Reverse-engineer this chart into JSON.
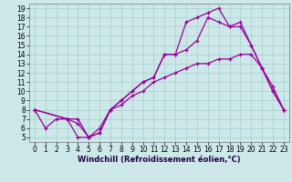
{
  "bg_color": "#cce8e8",
  "line_color": "#990099",
  "grid_color": "#aacccc",
  "xlim": [
    -0.5,
    23.5
  ],
  "ylim": [
    4.5,
    19.5
  ],
  "xticks": [
    0,
    1,
    2,
    3,
    4,
    5,
    6,
    7,
    8,
    9,
    10,
    11,
    12,
    13,
    14,
    15,
    16,
    17,
    18,
    19,
    20,
    21,
    22,
    23
  ],
  "yticks": [
    5,
    6,
    7,
    8,
    9,
    10,
    11,
    12,
    13,
    14,
    15,
    16,
    17,
    18,
    19
  ],
  "xlabel": "Windchill (Refroidissement éolien,°C)",
  "line1_x": [
    0,
    1,
    2,
    3,
    4,
    5,
    6,
    7,
    8,
    9,
    10,
    11,
    12,
    13,
    14,
    15,
    16,
    17,
    18,
    19,
    20,
    21,
    22,
    23
  ],
  "line1_y": [
    8,
    6,
    7,
    7,
    5,
    5,
    6,
    8,
    8.5,
    9.5,
    10,
    11,
    11.5,
    12,
    12.5,
    13,
    13,
    13.5,
    13.5,
    14,
    14,
    12.5,
    10.5,
    8
  ],
  "line2_x": [
    0,
    3,
    4,
    5,
    6,
    7,
    8,
    9,
    10,
    11,
    12,
    13,
    14,
    15,
    16,
    17,
    18,
    19,
    20,
    21,
    22,
    23
  ],
  "line2_y": [
    8,
    7,
    7,
    5,
    5.5,
    8,
    9,
    10,
    11,
    11.5,
    14,
    14,
    14.5,
    15.5,
    18,
    17.5,
    17,
    17,
    15,
    12.5,
    10,
    8
  ],
  "line3_x": [
    0,
    3,
    4,
    5,
    6,
    7,
    8,
    9,
    10,
    11,
    12,
    13,
    14,
    15,
    16,
    17,
    18,
    19,
    20,
    21,
    22,
    23
  ],
  "line3_y": [
    8,
    7,
    6.5,
    5,
    5.5,
    8,
    9,
    10,
    11,
    11.5,
    14,
    14,
    17.5,
    18,
    18.5,
    19,
    17,
    17.5,
    15,
    12.5,
    10,
    8
  ],
  "tick_fontsize": 5.5,
  "xlabel_fontsize": 6.0,
  "lw": 0.9,
  "marker_size": 3.5
}
